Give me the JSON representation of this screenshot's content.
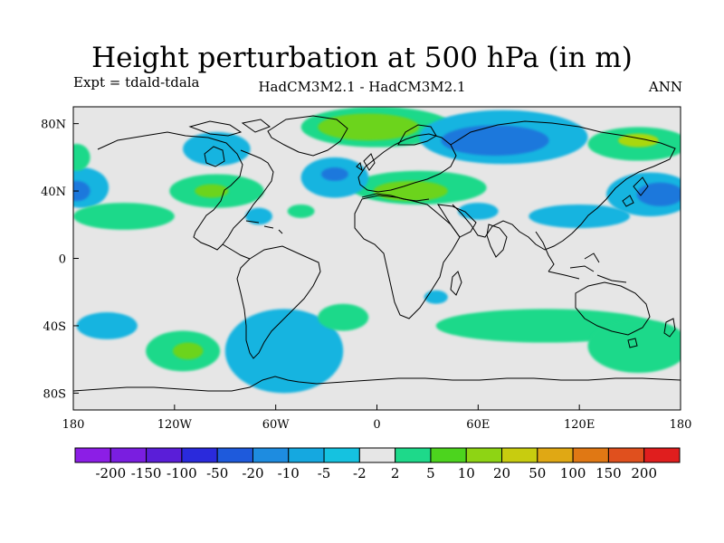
{
  "title": "Height perturbation at 500 hPa (in m)",
  "subtitle_left": "Expt = tdald-tdala",
  "subtitle_center": "HadCM3M2.1 - HadCM3M2.1",
  "subtitle_right": "ANN",
  "map": {
    "projection": "cylindrical equidistant",
    "lon_range": [
      -180,
      180
    ],
    "lat_range": [
      -90,
      90
    ],
    "background_color": "#e6e6e6",
    "lon_ticks": [
      {
        "value": -180,
        "label": "180"
      },
      {
        "value": -120,
        "label": "120W"
      },
      {
        "value": -60,
        "label": "60W"
      },
      {
        "value": 0,
        "label": "0"
      },
      {
        "value": 60,
        "label": "60E"
      },
      {
        "value": 120,
        "label": "120E"
      },
      {
        "value": 180,
        "label": "180"
      }
    ],
    "lat_ticks": [
      {
        "value": 80,
        "label": "80N"
      },
      {
        "value": 40,
        "label": "40N"
      },
      {
        "value": 0,
        "label": "0"
      },
      {
        "value": -40,
        "label": "40S"
      },
      {
        "value": -80,
        "label": "80S"
      }
    ],
    "anomaly_regions": [
      {
        "name": "arctic-greenland-high",
        "lon": 0,
        "lat": 78,
        "rlon": 45,
        "rlat": 12,
        "color": "#1ed98a"
      },
      {
        "name": "arctic-greenland-high-core",
        "lon": -5,
        "lat": 78,
        "rlon": 30,
        "rlat": 8,
        "color": "#6cd41e"
      },
      {
        "name": "europe-high",
        "lon": 25,
        "lat": 42,
        "rlon": 40,
        "rlat": 10,
        "color": "#1ed98a"
      },
      {
        "name": "europe-high-core",
        "lon": 20,
        "lat": 40,
        "rlon": 22,
        "rlat": 6,
        "color": "#6cd41e"
      },
      {
        "name": "siberia-low",
        "lon": 75,
        "lat": 72,
        "rlon": 50,
        "rlat": 16,
        "color": "#15b4e0"
      },
      {
        "name": "siberia-low-core",
        "lon": 70,
        "lat": 70,
        "rlon": 32,
        "rlat": 9,
        "color": "#1e78dc"
      },
      {
        "name": "east-siberia-high",
        "lon": 155,
        "lat": 68,
        "rlon": 30,
        "rlat": 10,
        "color": "#1ed98a"
      },
      {
        "name": "east-siberia-high-core",
        "lon": 155,
        "lat": 70,
        "rlon": 12,
        "rlat": 4,
        "color": "#a9d70f"
      },
      {
        "name": "north-pacific-low",
        "lon": 162,
        "lat": 38,
        "rlon": 26,
        "rlat": 13,
        "color": "#15b4e0"
      },
      {
        "name": "north-pacific-low-core",
        "lon": 168,
        "lat": 38,
        "rlon": 14,
        "rlat": 7,
        "color": "#1e78dc"
      },
      {
        "name": "west-pacific-low",
        "lon": -175,
        "lat": 42,
        "rlon": 16,
        "rlat": 12,
        "color": "#15b4e0"
      },
      {
        "name": "west-pacific-low-core",
        "lon": -178,
        "lat": 40,
        "rlon": 8,
        "rlat": 6,
        "color": "#1e78dc"
      },
      {
        "name": "alaska-high",
        "lon": -178,
        "lat": 60,
        "rlon": 8,
        "rlat": 8,
        "color": "#1ed98a"
      },
      {
        "name": "canada-low",
        "lon": -95,
        "lat": 65,
        "rlon": 20,
        "rlat": 10,
        "color": "#15b4e0"
      },
      {
        "name": "north-america-high",
        "lon": -95,
        "lat": 40,
        "rlon": 28,
        "rlat": 10,
        "color": "#1ed98a"
      },
      {
        "name": "north-america-high-core",
        "lon": -98,
        "lat": 40,
        "rlon": 10,
        "rlat": 4,
        "color": "#6cd41e"
      },
      {
        "name": "north-atlantic-low",
        "lon": -25,
        "lat": 48,
        "rlon": 20,
        "rlat": 12,
        "color": "#15b4e0"
      },
      {
        "name": "north-atlantic-low-core",
        "lon": -25,
        "lat": 50,
        "rlon": 8,
        "rlat": 4,
        "color": "#1e78dc"
      },
      {
        "name": "tropical-band-high",
        "lon": -150,
        "lat": 25,
        "rlon": 30,
        "rlat": 8,
        "color": "#1ed98a"
      },
      {
        "name": "caribbean-low",
        "lon": -70,
        "lat": 25,
        "rlon": 8,
        "rlat": 5,
        "color": "#15b4e0"
      },
      {
        "name": "mid-atlantic-high",
        "lon": -45,
        "lat": 28,
        "rlon": 8,
        "rlat": 4,
        "color": "#1ed98a"
      },
      {
        "name": "arabia-low",
        "lon": 60,
        "lat": 28,
        "rlon": 12,
        "rlat": 5,
        "color": "#15b4e0"
      },
      {
        "name": "east-asia-low",
        "lon": 120,
        "lat": 25,
        "rlon": 30,
        "rlat": 7,
        "color": "#15b4e0"
      },
      {
        "name": "south-pacific-low",
        "lon": -160,
        "lat": -40,
        "rlon": 18,
        "rlat": 8,
        "color": "#15b4e0"
      },
      {
        "name": "south-pacific-high",
        "lon": -115,
        "lat": -55,
        "rlon": 22,
        "rlat": 12,
        "color": "#1ed98a"
      },
      {
        "name": "south-pacific-high-core",
        "lon": -112,
        "lat": -55,
        "rlon": 9,
        "rlat": 5,
        "color": "#6cd41e"
      },
      {
        "name": "south-atlantic-low",
        "lon": -55,
        "lat": -55,
        "rlon": 35,
        "rlat": 25,
        "color": "#15b4e0"
      },
      {
        "name": "south-atlantic-high",
        "lon": -20,
        "lat": -35,
        "rlon": 15,
        "rlat": 8,
        "color": "#1ed98a"
      },
      {
        "name": "indian-ocean-low",
        "lon": 35,
        "lat": -23,
        "rlon": 7,
        "rlat": 4,
        "color": "#15b4e0"
      },
      {
        "name": "southern-ocean-high",
        "lon": 100,
        "lat": -40,
        "rlon": 65,
        "rlat": 10,
        "color": "#1ed98a"
      },
      {
        "name": "australia-high",
        "lon": 155,
        "lat": -52,
        "rlon": 30,
        "rlat": 16,
        "color": "#1ed98a"
      }
    ]
  },
  "colorbar": {
    "levels": [
      "-200",
      "-150",
      "-100",
      "-50",
      "-20",
      "-10",
      "-5",
      "-2",
      "2",
      "5",
      "10",
      "20",
      "50",
      "100",
      "150",
      "200"
    ],
    "colors": [
      "#8c1ee6",
      "#7a1ee0",
      "#5a1ed8",
      "#2a2adc",
      "#1e5adc",
      "#1e8ce0",
      "#15a8e0",
      "#15c2e0",
      "#e6e6e6",
      "#1ed98a",
      "#4cd41e",
      "#8ed414",
      "#c8cc0f",
      "#e0a814",
      "#e07814",
      "#e0501e",
      "#e01e1e"
    ]
  }
}
